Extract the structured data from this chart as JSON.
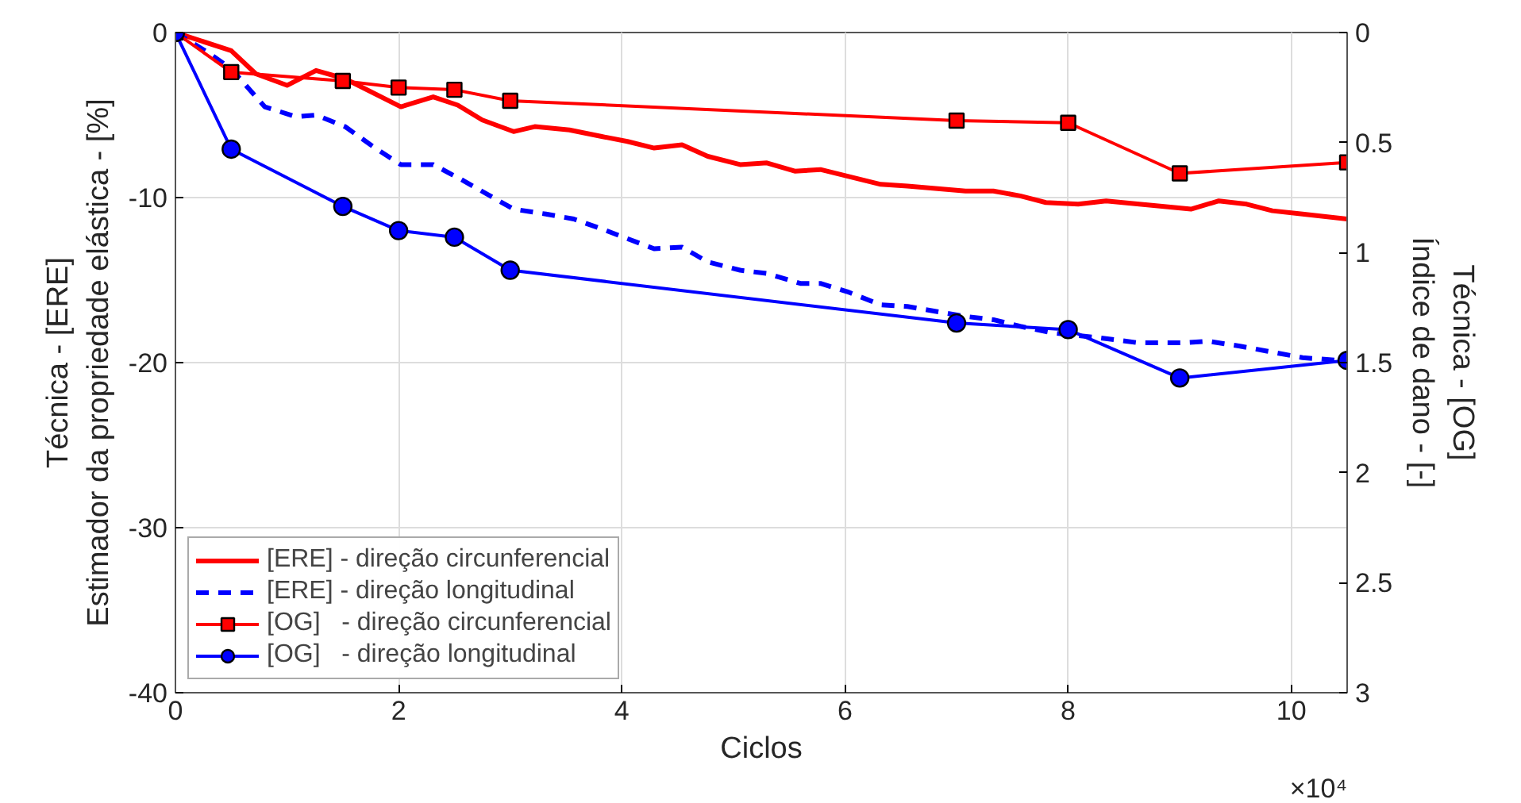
{
  "chart_data": {
    "type": "line",
    "xlabel": "Ciclos",
    "ylabel": "Técnica - [ERE]\nEstimador da propriedade elástica - [%]",
    "y2label": "Técnica - [OG]\nÍndice de dano - [-]",
    "xlim": [
      0,
      10.5
    ],
    "xticks": [
      0,
      2,
      4,
      6,
      8,
      10
    ],
    "ylim": [
      -40,
      0
    ],
    "yticks": [
      -40,
      -30,
      -20,
      -10,
      0
    ],
    "y2lim": [
      3,
      0
    ],
    "y2ticks": [
      0,
      0.5,
      1,
      1.5,
      2,
      2.5,
      3
    ],
    "grid": true,
    "legend": "bottom left",
    "annotations": [
      "×10⁴"
    ],
    "series": [
      {
        "name": "[ERE] - direção circunferencial",
        "color": "#ff0000",
        "line_style": "solid",
        "marker": "none",
        "x": [
          0,
          0.5,
          0.72,
          1.0,
          1.26,
          1.52,
          2.02,
          2.31,
          2.53,
          2.75,
          3.03,
          3.22,
          3.53,
          3.82,
          4.05,
          4.29,
          4.54,
          4.77,
          5.06,
          5.3,
          5.55,
          5.78,
          6.32,
          6.56,
          7.08,
          7.33,
          7.57,
          7.8,
          8.09,
          8.34,
          9.1,
          9.35,
          9.6,
          9.83,
          10.1,
          10.5
        ],
        "values": [
          0,
          -1.1,
          -2.5,
          -3.2,
          -2.3,
          -2.8,
          -4.5,
          -3.9,
          -4.4,
          -5.3,
          -6.0,
          -5.7,
          -5.9,
          -6.3,
          -6.6,
          -7.0,
          -6.8,
          -7.5,
          -8.0,
          -7.9,
          -8.4,
          -8.3,
          -9.2,
          -9.3,
          -9.6,
          -9.6,
          -9.9,
          -10.3,
          -10.4,
          -10.2,
          -10.7,
          -10.2,
          -10.4,
          -10.8,
          -11.0,
          -11.3
        ]
      },
      {
        "name": "[ERE] - direção longitudinal",
        "color": "#0000ff",
        "line_style": "dashed",
        "marker": "none",
        "x": [
          0,
          0.29,
          0.5,
          0.8,
          1.08,
          1.26,
          1.52,
          1.79,
          2.02,
          2.31,
          2.56,
          3.03,
          3.32,
          3.57,
          3.82,
          4.29,
          4.54,
          4.77,
          5.06,
          5.3,
          5.6,
          5.78,
          6.02,
          6.32,
          6.56,
          7.08,
          7.33,
          7.57,
          7.86,
          8.29,
          8.63,
          9.02,
          9.25,
          9.54,
          9.78,
          10.1,
          10.5
        ],
        "values": [
          0,
          -1.2,
          -2.2,
          -4.5,
          -5.1,
          -5.0,
          -5.7,
          -7.0,
          -8.0,
          -8.0,
          -8.9,
          -10.7,
          -11.0,
          -11.3,
          -11.9,
          -13.1,
          -13.0,
          -13.9,
          -14.4,
          -14.6,
          -15.2,
          -15.2,
          -15.7,
          -16.5,
          -16.6,
          -17.2,
          -17.4,
          -17.8,
          -18.2,
          -18.5,
          -18.8,
          -18.8,
          -18.7,
          -19.0,
          -19.3,
          -19.7,
          -19.9
        ]
      },
      {
        "name": "[OG]   - direção circunferencial",
        "color": "#ff0000",
        "line_style": "solid",
        "marker": "square",
        "axis": "y2",
        "x": [
          0,
          0.5,
          1.5,
          2,
          2.5,
          3,
          7,
          8,
          9,
          10.5
        ],
        "values": [
          0,
          0.18,
          0.22,
          0.25,
          0.26,
          0.31,
          0.4,
          0.41,
          0.64,
          0.59
        ]
      },
      {
        "name": "[OG]   - direção longitudinal",
        "color": "#0000ff",
        "line_style": "solid",
        "marker": "circle",
        "axis": "y2",
        "x": [
          0,
          0.5,
          1.5,
          2,
          2.5,
          3,
          7,
          8,
          9,
          10.5
        ],
        "values": [
          0,
          0.53,
          0.79,
          0.9,
          0.93,
          1.08,
          1.32,
          1.35,
          1.57,
          1.49
        ]
      }
    ]
  }
}
